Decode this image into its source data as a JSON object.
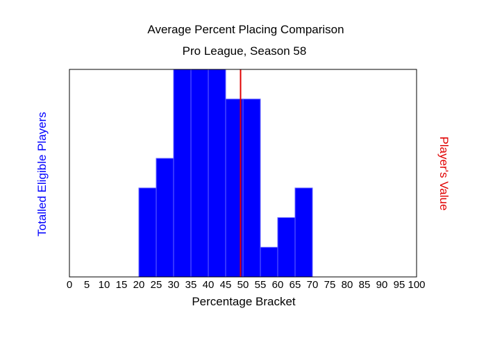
{
  "chart_data": {
    "type": "bar",
    "title": "Average Percent Placing Comparison",
    "subtitle": "Pro League, Season 58",
    "xlabel": "Percentage Bracket",
    "ylabel": "Totalled Eligible Players",
    "y2label": "Player's Value",
    "xlim": [
      0,
      100
    ],
    "ylim": [
      0,
      7
    ],
    "bin_width": 5,
    "x_ticks": [
      0,
      5,
      10,
      15,
      20,
      25,
      30,
      35,
      40,
      45,
      50,
      55,
      60,
      65,
      70,
      75,
      80,
      85,
      90,
      95,
      100
    ],
    "bins": [
      20,
      25,
      30,
      35,
      40,
      45,
      50,
      55,
      60,
      65
    ],
    "values": [
      3,
      4,
      7,
      7,
      7,
      6,
      6,
      1,
      2,
      3
    ],
    "player_value": 49.3,
    "grid": false,
    "colors": {
      "bars": "#0000ff",
      "bar_edge": "#6666ff",
      "player_line": "#e00000",
      "ylabel": "#0000ff",
      "y2label": "#e00000"
    }
  }
}
